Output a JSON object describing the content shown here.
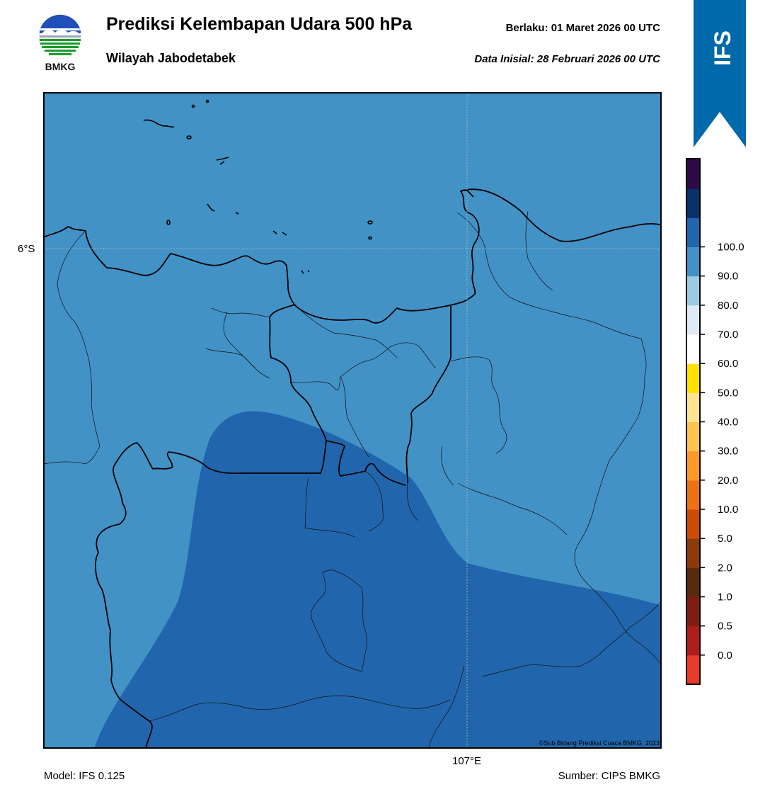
{
  "header": {
    "title": "Prediksi Kelembapan Udara 500 hPa",
    "subtitle": "Wilayah Jabodetabek",
    "valid_time": "Berlaku:  01 Maret 2026 00 UTC",
    "init_time": "Data Inisial:  28 Februari 2026 00 UTC"
  },
  "logo": {
    "text": "BMKG",
    "icon": "bmkg-logo-icon"
  },
  "ribbon": {
    "text": "IFS",
    "color": "#0069aa"
  },
  "map": {
    "lat_label": "6°S",
    "lon_label": "107°E",
    "credit": "©Sub Bidang Prediksi Cuaca BMKG, 2023",
    "fill_colors": {
      "70-80": "#4292c6",
      "80-90": "#2166ac"
    }
  },
  "colorbar": {
    "bands": [
      {
        "color": "#e8392b"
      },
      {
        "color": "#b01b1b"
      },
      {
        "color": "#7f1d10"
      },
      {
        "color": "#5a2a0e"
      },
      {
        "color": "#8b3a0b"
      },
      {
        "color": "#cc4c02"
      },
      {
        "color": "#ec7014"
      },
      {
        "color": "#fb9a29"
      },
      {
        "color": "#fec44f"
      },
      {
        "color": "#fee391"
      },
      {
        "color": "#ffe100"
      },
      {
        "color": "#ffffff"
      },
      {
        "color": "#deebf7"
      },
      {
        "color": "#9ecae1"
      },
      {
        "color": "#4292c6"
      },
      {
        "color": "#2166ac"
      },
      {
        "color": "#08306b"
      },
      {
        "color": "#2e0a4a"
      }
    ],
    "tick_labels": [
      "0.0",
      "0.5",
      "1.0",
      "2.0",
      "5.0",
      "10.0",
      "20.0",
      "30.0",
      "40.0",
      "50.0",
      "60.0",
      "70.0",
      "80.0",
      "90.0",
      "100.0"
    ]
  },
  "footer": {
    "model": "Model: IFS 0.125",
    "source": "Sumber: CIPS BMKG"
  }
}
